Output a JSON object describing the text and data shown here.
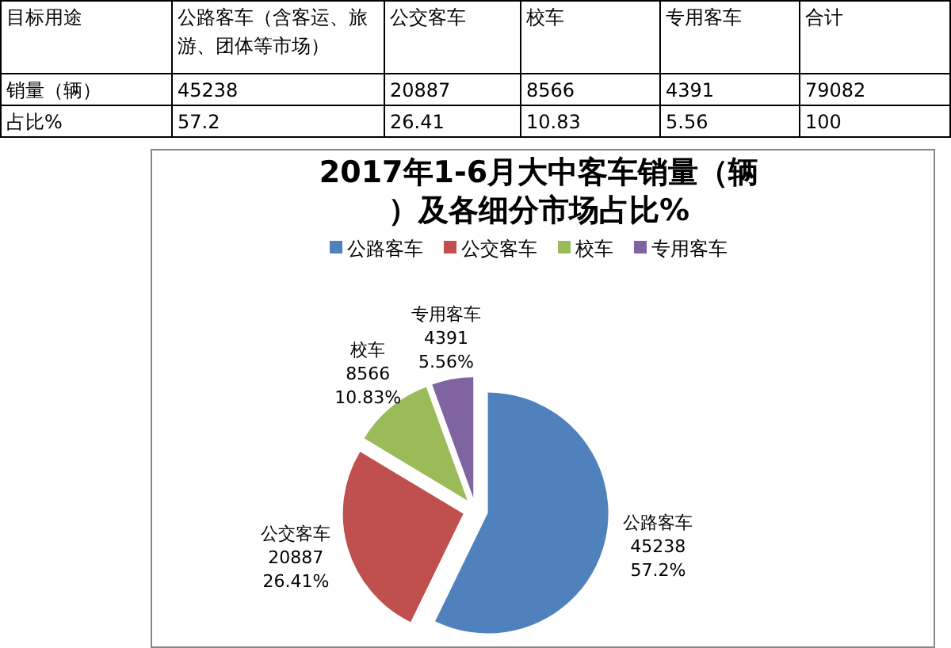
{
  "chart_data": {
    "type": "pie",
    "title": "2017年1-6月大中客车销量（辆）及各细分市场占比%",
    "categories": [
      "公路客车",
      "公交客车",
      "校车",
      "专用客车"
    ],
    "values": [
      45238,
      20887,
      8566,
      4391
    ],
    "colors": [
      "#4f81bd",
      "#c0504d",
      "#9bbb59",
      "#8064a2"
    ],
    "data_labels": true,
    "legend": "top",
    "annotations": [
      "目标用途",
      "公路客车（含客运、旅游、团体等市场）",
      "公交客车",
      "校车",
      "专用客车",
      "合计",
      "销量（辆）",
      "45238",
      "20887",
      "8566",
      "4391",
      "79082",
      "占比%",
      "57.2",
      "26.41",
      "10.83",
      "5.56",
      "100",
      "57.2%",
      "26.41%",
      "10.83%",
      "5.56%"
    ]
  }
}
